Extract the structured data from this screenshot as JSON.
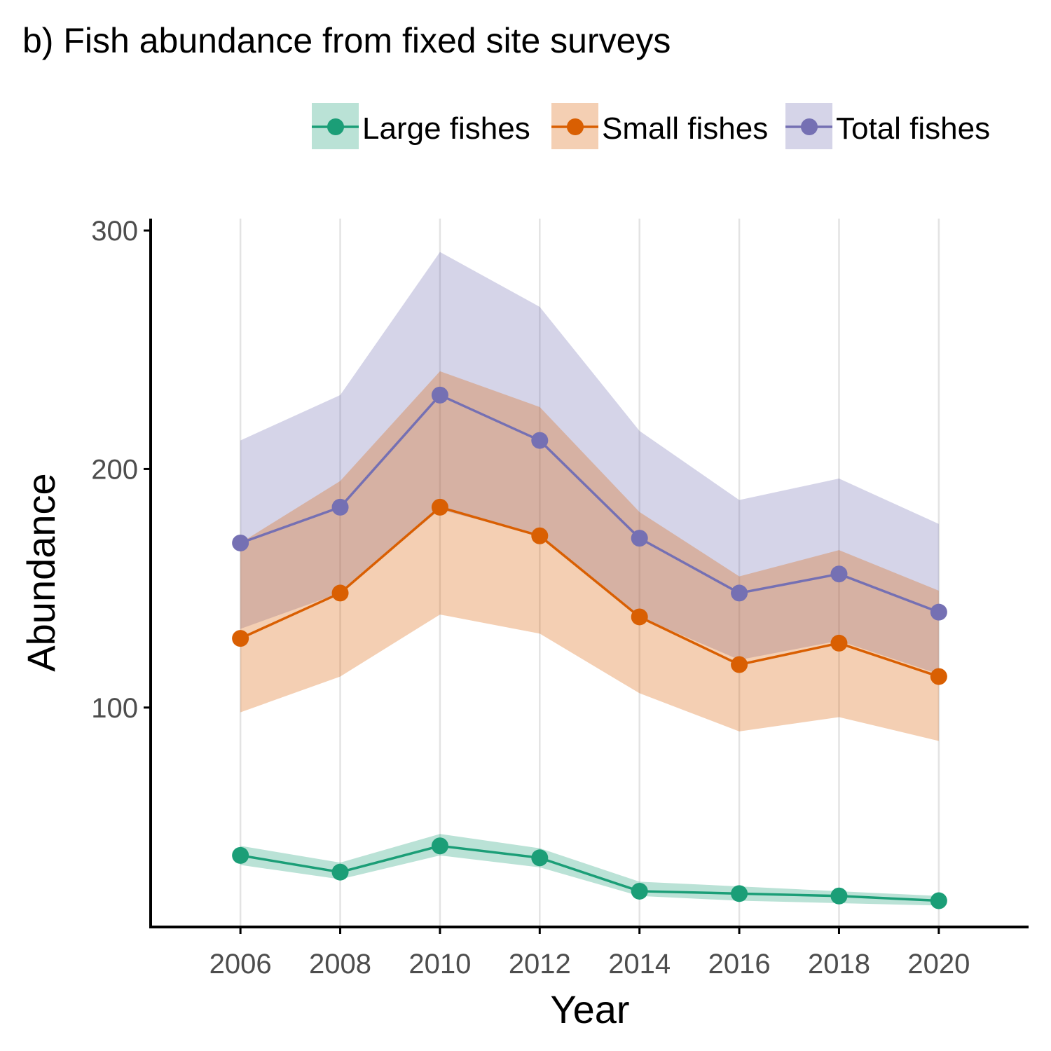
{
  "chart_data": {
    "type": "line",
    "title": "b) Fish abundance from fixed site surveys",
    "xlabel": "Year",
    "ylabel": "Abundance",
    "x": [
      2006,
      2008,
      2010,
      2012,
      2014,
      2016,
      2018,
      2020
    ],
    "xlim": [
      2004.2,
      2021.8
    ],
    "ylim": [
      8,
      305
    ],
    "yticks": [
      100,
      200,
      300
    ],
    "xticks": [
      2006,
      2008,
      2010,
      2012,
      2014,
      2016,
      2018,
      2020
    ],
    "grid": "vertical major gridlines",
    "legend_position": "top-right",
    "series": [
      {
        "name": "Total fishes",
        "color": "#7570b3",
        "ribbon_color": "#d9d7ea",
        "values": [
          169,
          184,
          231,
          212,
          171,
          148,
          156,
          140
        ],
        "lower": [
          133,
          148,
          183,
          172,
          138,
          120,
          128,
          114
        ],
        "upper": [
          212,
          231,
          291,
          268,
          216,
          187,
          196,
          177
        ]
      },
      {
        "name": "Small fishes",
        "color": "#d95f02",
        "ribbon_color": "#f4cfb3",
        "values": [
          129,
          148,
          184,
          172,
          138,
          118,
          127,
          113
        ],
        "lower": [
          98,
          113,
          139,
          131,
          106,
          90,
          96,
          86
        ],
        "upper": [
          169,
          195,
          241,
          226,
          182,
          155,
          166,
          149
        ]
      },
      {
        "name": "Large fishes",
        "color": "#1b9e77",
        "ribbon_color": "#b9e3d6",
        "values": [
          38,
          31,
          42,
          37,
          23,
          22,
          21,
          19
        ],
        "lower": [
          34,
          28,
          38,
          33,
          21,
          19,
          18,
          17
        ],
        "upper": [
          42,
          35,
          47,
          41,
          27,
          25,
          23,
          21
        ]
      }
    ],
    "legend_order": [
      "Large fishes",
      "Small fishes",
      "Total fishes"
    ]
  }
}
